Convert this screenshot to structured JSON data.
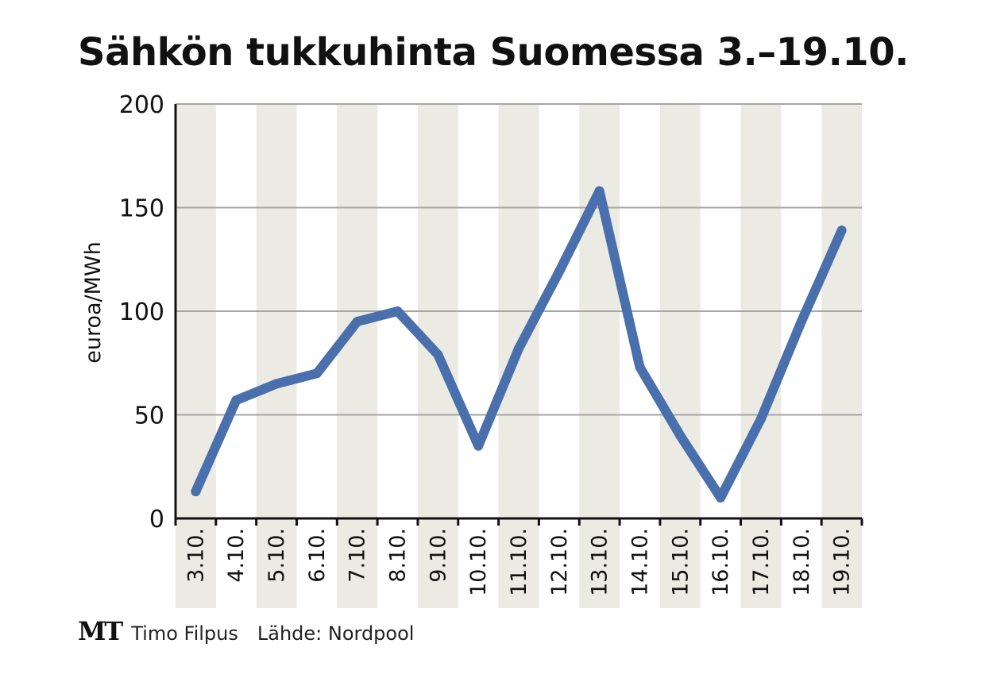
{
  "chart_data": {
    "type": "line",
    "title": "Sähkön tukkuhinta Suomessa 3.–19.10.",
    "xlabel": "",
    "ylabel": "euroa/MWh",
    "ylim": [
      0,
      200
    ],
    "yticks": [
      0,
      50,
      100,
      150,
      200
    ],
    "grid": true,
    "categories": [
      "3.10.",
      "4.10.",
      "5.10.",
      "6.10.",
      "7.10.",
      "8.10.",
      "9.10.",
      "10.10.",
      "11.10.",
      "12.10.",
      "13.10.",
      "14.10.",
      "15.10.",
      "16.10.",
      "17.10.",
      "18.10.",
      "19.10."
    ],
    "series": [
      {
        "name": "",
        "values": [
          13,
          57,
          65,
          70,
          95,
          100,
          79,
          35,
          82,
          119,
          158,
          73,
          40,
          10,
          48,
          95,
          139
        ]
      }
    ],
    "colors": {
      "line": "#4a6fad",
      "band": "#ebebe4",
      "grid": "#a5a5a5",
      "axis": "#111111"
    }
  },
  "footer": {
    "logo": "MT",
    "credit": "Timo Filpus",
    "source": "Lähde: Nordpool"
  }
}
